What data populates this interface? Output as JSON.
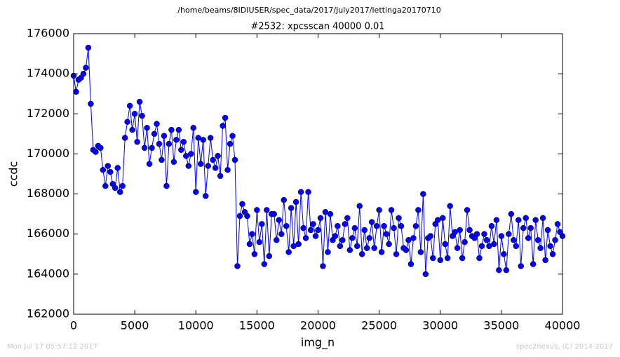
{
  "chart_data": {
    "type": "line",
    "suptitle": "/home/beams/8IDIUSER/spec_data/2017/July2017/lettinga20170710",
    "title": "#2532: xpcsscan 40000 0.01",
    "xlabel": "img_n",
    "ylabel": "ccdc",
    "footer_left": "Mon Jul 17 05:57:12 2017",
    "footer_right": "spec2nexus, (C) 2014-2017",
    "xlim": [
      0,
      40000
    ],
    "ylim": [
      162000,
      176000
    ],
    "xticks": [
      0,
      5000,
      10000,
      15000,
      20000,
      25000,
      30000,
      35000,
      40000
    ],
    "yticks": [
      162000,
      164000,
      166000,
      168000,
      170000,
      172000,
      174000,
      176000
    ],
    "grid": false,
    "markers": true,
    "x": [
      0,
      200,
      400,
      600,
      800,
      1000,
      1200,
      1400,
      1600,
      1800,
      2000,
      2200,
      2400,
      2600,
      2800,
      3000,
      3200,
      3400,
      3600,
      3800,
      4000,
      4200,
      4400,
      4600,
      4800,
      5000,
      5200,
      5400,
      5600,
      5800,
      6000,
      6200,
      6400,
      6600,
      6800,
      7000,
      7200,
      7400,
      7600,
      7800,
      8000,
      8200,
      8400,
      8600,
      8800,
      9000,
      9200,
      9400,
      9600,
      9800,
      10000,
      10200,
      10400,
      10600,
      10800,
      11000,
      11200,
      11400,
      11600,
      11800,
      12000,
      12200,
      12400,
      12600,
      12800,
      13000,
      13200,
      13400,
      13600,
      13800,
      14000,
      14200,
      14400,
      14600,
      14800,
      15000,
      15200,
      15400,
      15600,
      15800,
      16000,
      16200,
      16400,
      16600,
      16800,
      17000,
      17200,
      17400,
      17600,
      17800,
      18000,
      18200,
      18400,
      18600,
      18800,
      19000,
      19200,
      19400,
      19600,
      19800,
      20000,
      20200,
      20400,
      20600,
      20800,
      21000,
      21200,
      21400,
      21600,
      21800,
      22000,
      22200,
      22400,
      22600,
      22800,
      23000,
      23200,
      23400,
      23600,
      23800,
      24000,
      24200,
      24400,
      24600,
      24800,
      25000,
      25200,
      25400,
      25600,
      25800,
      26000,
      26200,
      26400,
      26600,
      26800,
      27000,
      27200,
      27400,
      27600,
      27800,
      28000,
      28200,
      28400,
      28600,
      28800,
      29000,
      29200,
      29400,
      29600,
      29800,
      30000,
      30200,
      30400,
      30600,
      30800,
      31000,
      31200,
      31400,
      31600,
      31800,
      32000,
      32200,
      32400,
      32600,
      32800,
      33000,
      33200,
      33400,
      33600,
      33800,
      34000,
      34200,
      34400,
      34600,
      34800,
      35000,
      35200,
      35400,
      35600,
      35800,
      36000,
      36200,
      36400,
      36600,
      36800,
      37000,
      37200,
      37400,
      37600,
      37800,
      38000,
      38200,
      38400,
      38600,
      38800,
      39000,
      39200,
      39400,
      39600,
      39800,
      40000
    ],
    "series": [
      {
        "name": "ccdc",
        "color": "#0000ff",
        "values": [
          173900,
          173100,
          173700,
          173800,
          174000,
          174300,
          175300,
          172500,
          170200,
          170100,
          170400,
          170300,
          169200,
          168400,
          169400,
          169100,
          168500,
          168300,
          169300,
          168100,
          168400,
          170800,
          171600,
          172400,
          171200,
          172000,
          170600,
          172600,
          171900,
          170300,
          171300,
          169500,
          170300,
          171000,
          171500,
          170500,
          169700,
          170900,
          168400,
          170500,
          171200,
          169600,
          170700,
          171200,
          170200,
          170600,
          169900,
          169400,
          170000,
          171300,
          168100,
          170800,
          169500,
          170700,
          167900,
          169400,
          170800,
          169700,
          169300,
          169900,
          168900,
          171400,
          171800,
          169200,
          170500,
          170900,
          169700,
          164400,
          166900,
          167500,
          167100,
          166900,
          165500,
          166000,
          165000,
          167200,
          165600,
          166500,
          164500,
          167200,
          164900,
          167000,
          167000,
          165700,
          166700,
          166000,
          167700,
          166400,
          165100,
          167300,
          165400,
          167600,
          165500,
          168100,
          166300,
          165800,
          168100,
          166200,
          166500,
          165900,
          166200,
          166800,
          164400,
          167100,
          165100,
          167000,
          165700,
          165900,
          166400,
          165400,
          165700,
          166500,
          166800,
          165200,
          165800,
          166300,
          165400,
          167400,
          165000,
          166200,
          165300,
          165800,
          166600,
          165300,
          166400,
          167200,
          165100,
          166400,
          166000,
          165500,
          167200,
          166300,
          165000,
          166800,
          166400,
          165300,
          165200,
          165700,
          164500,
          165800,
          166400,
          167200,
          165100,
          168000,
          164000,
          165800,
          165900,
          164800,
          166500,
          166700,
          164700,
          166800,
          165500,
          164800,
          167400,
          165900,
          166100,
          165300,
          166200,
          164800,
          165600,
          167200,
          166200,
          165900,
          165800,
          166000,
          164800,
          165400,
          166000,
          165700,
          165400,
          166400,
          165500,
          166700,
          164200,
          165900,
          165000,
          164200,
          166000,
          167000,
          165700,
          165400,
          166700,
          164400,
          166300,
          166800,
          165800,
          166300,
          164500,
          166700,
          165700,
          165300,
          166800,
          164700,
          166200,
          165400,
          165000,
          165700,
          166500,
          166100,
          165900
        ]
      }
    ]
  }
}
